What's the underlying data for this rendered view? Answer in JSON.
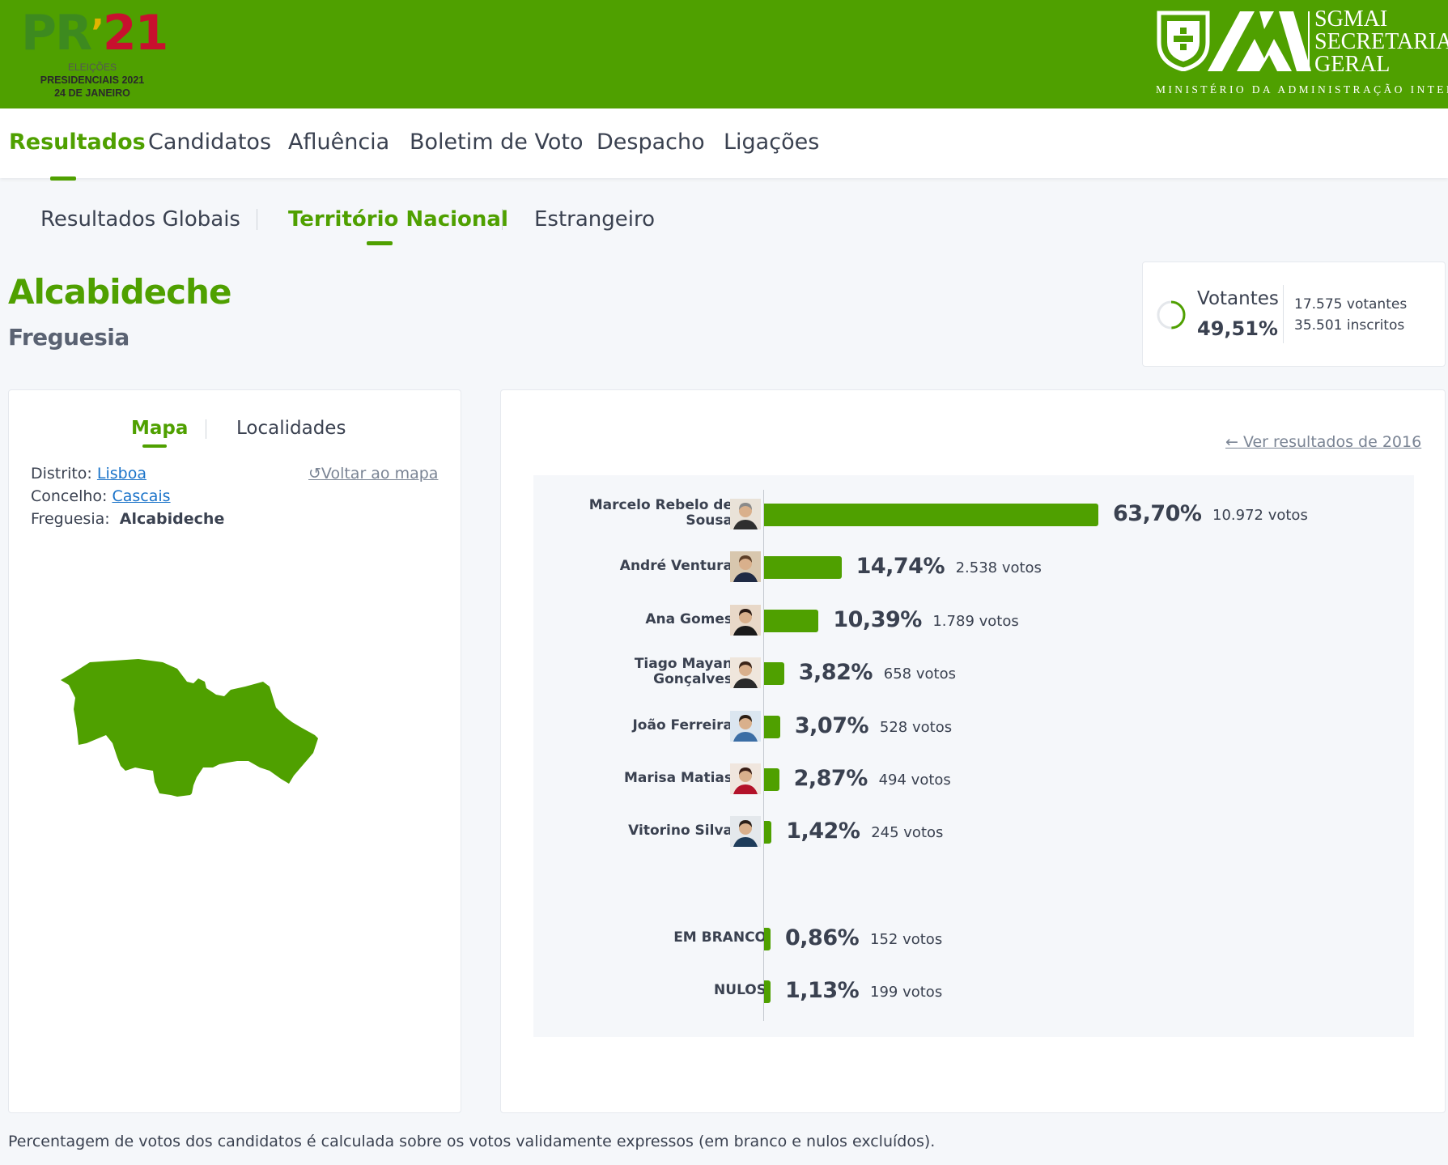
{
  "header": {
    "logo_pr": "PR",
    "logo_num": "21",
    "logo_line1": "ELEIÇÕES",
    "logo_line2": "PRESIDENCIAIS 2021",
    "logo_line3": "24 DE JANEIRO",
    "sgmai_line1": "SGMAI",
    "sgmai_line2": "SECRETARIA",
    "sgmai_line3": "GERAL",
    "ministry": "MINISTÉRIO DA ADMINISTRAÇÃO INTERNA"
  },
  "main_nav": [
    "Resultados",
    "Candidatos",
    "Afluência",
    "Boletim de Voto",
    "Despacho",
    "Ligações"
  ],
  "sub_nav": [
    "Resultados Globais",
    "Território Nacional",
    "Estrangeiro"
  ],
  "place": {
    "name": "Alcabideche",
    "type": "Freguesia"
  },
  "votantes": {
    "label": "Votantes",
    "pct": "49,51%",
    "votantes": "17.575 votantes",
    "inscritos": "35.501 inscritos",
    "fraction": 0.4951
  },
  "left": {
    "tabs": [
      "Mapa",
      "Localidades"
    ],
    "distrito_label": "Distrito:",
    "distrito": "Lisboa",
    "concelho_label": "Concelho:",
    "concelho": "Cascais",
    "freguesia_label": "Freguesia:",
    "freguesia": "Alcabideche",
    "back_to_map": "Voltar ao mapa",
    "map_color": "#4fa000"
  },
  "right": {
    "ver_2016": "Ver resultados de 2016"
  },
  "chart_data": {
    "type": "bar",
    "orientation": "horizontal",
    "categories": [
      "Marcelo Rebelo de Sousa",
      "André Ventura",
      "Ana Gomes",
      "Tiago Mayan Gonçalves",
      "João Ferreira",
      "Marisa Matias",
      "Vitorino Silva",
      "EM BRANCO",
      "NULOS"
    ],
    "values": [
      63.7,
      14.74,
      10.39,
      3.82,
      3.07,
      2.87,
      1.42,
      0.86,
      1.13
    ],
    "value_labels": [
      "63,70%",
      "14,74%",
      "10,39%",
      "3,82%",
      "3,07%",
      "2,87%",
      "1,42%",
      "0,86%",
      "1,13%"
    ],
    "votes": [
      "10.972 votos",
      "2.538 votos",
      "1.789 votos",
      "658 votos",
      "528 votos",
      "494 votos",
      "245 votos",
      "152 votos",
      "199 votos"
    ],
    "bar_color": "#4fa000",
    "xlim": [
      0,
      100
    ],
    "grid": false
  },
  "footnote": "Percentagem de votos dos candidatos é calculada sobre os votos validamente expressos (em branco e nulos excluídos)."
}
